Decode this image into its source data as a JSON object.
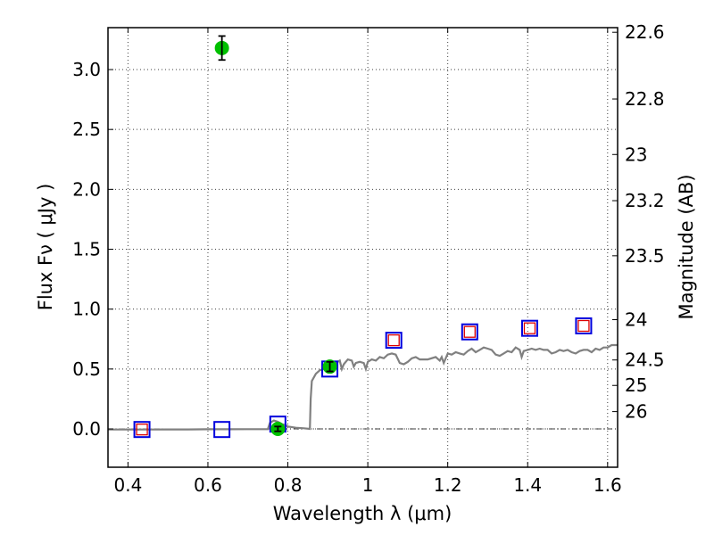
{
  "chart_data": {
    "type": "scatter",
    "xlabel": "Wavelength  λ (μm)",
    "ylabel": "Flux  Fν ( μJy )",
    "y2label": "Magnitude (AB)",
    "xlim": [
      0.35,
      1.625
    ],
    "ylim": [
      -0.32,
      3.35
    ],
    "x_ticks": [
      0.4,
      0.6,
      0.8,
      1.0,
      1.2,
      1.4,
      1.6
    ],
    "x_tick_labels": [
      "0.4",
      "0.6",
      "0.8",
      "1",
      "1.2",
      "1.4",
      "1.6"
    ],
    "y_ticks": [
      0.0,
      0.5,
      1.0,
      1.5,
      2.0,
      2.5,
      3.0
    ],
    "y_tick_labels": [
      "0.0",
      "0.5",
      "1.0",
      "1.5",
      "2.0",
      "2.5",
      "3.0"
    ],
    "y2_ticks": [
      22.6,
      22.8,
      23,
      23.2,
      23.5,
      24,
      24.5,
      25,
      26
    ],
    "y2_tick_labels": [
      "22.6",
      "22.8",
      "23",
      "23.2",
      "23.5",
      "24",
      "24.5",
      "25",
      "26"
    ],
    "grid": true,
    "zero_line": true,
    "colors": {
      "observed": "#00c000",
      "model_box": "#0000dd",
      "upper_box": "#dd0000",
      "spectrum": "#808080"
    },
    "series": [
      {
        "kind": "model_spectrum",
        "x": [
          0.35,
          0.4,
          0.45,
          0.5,
          0.55,
          0.6,
          0.65,
          0.7,
          0.75,
          0.755,
          0.765,
          0.775,
          0.785,
          0.795,
          0.8,
          0.82,
          0.84,
          0.855,
          0.857,
          0.86,
          0.87,
          0.88,
          0.89,
          0.9,
          0.91,
          0.92,
          0.93,
          0.935,
          0.94,
          0.95,
          0.96,
          0.965,
          0.97,
          0.98,
          0.99,
          0.995,
          1.0,
          1.01,
          1.02,
          1.03,
          1.04,
          1.05,
          1.06,
          1.07,
          1.08,
          1.09,
          1.1,
          1.11,
          1.12,
          1.13,
          1.15,
          1.17,
          1.18,
          1.185,
          1.19,
          1.2,
          1.21,
          1.22,
          1.23,
          1.24,
          1.25,
          1.26,
          1.27,
          1.28,
          1.29,
          1.3,
          1.31,
          1.32,
          1.33,
          1.34,
          1.35,
          1.36,
          1.37,
          1.38,
          1.385,
          1.39,
          1.4,
          1.41,
          1.42,
          1.43,
          1.44,
          1.45,
          1.46,
          1.47,
          1.48,
          1.49,
          1.5,
          1.51,
          1.52,
          1.53,
          1.54,
          1.55,
          1.56,
          1.57,
          1.58,
          1.59,
          1.6,
          1.61,
          1.625
        ],
        "y": [
          -0.005,
          -0.005,
          -0.005,
          -0.004,
          -0.004,
          -0.003,
          -0.003,
          -0.002,
          -0.002,
          0.05,
          0.07,
          0.06,
          0.04,
          0.03,
          0.02,
          0.01,
          0.005,
          0.0,
          0.25,
          0.4,
          0.46,
          0.49,
          0.5,
          0.51,
          0.53,
          0.55,
          0.57,
          0.5,
          0.54,
          0.58,
          0.57,
          0.52,
          0.55,
          0.56,
          0.55,
          0.5,
          0.56,
          0.58,
          0.57,
          0.6,
          0.59,
          0.62,
          0.63,
          0.62,
          0.55,
          0.54,
          0.56,
          0.59,
          0.6,
          0.58,
          0.58,
          0.6,
          0.57,
          0.6,
          0.55,
          0.63,
          0.62,
          0.64,
          0.63,
          0.62,
          0.65,
          0.67,
          0.64,
          0.66,
          0.68,
          0.67,
          0.66,
          0.62,
          0.61,
          0.63,
          0.65,
          0.64,
          0.68,
          0.66,
          0.6,
          0.65,
          0.66,
          0.67,
          0.66,
          0.67,
          0.66,
          0.66,
          0.63,
          0.64,
          0.66,
          0.65,
          0.66,
          0.64,
          0.63,
          0.65,
          0.66,
          0.66,
          0.64,
          0.67,
          0.66,
          0.68,
          0.68,
          0.7,
          0.7
        ]
      },
      {
        "kind": "model_band_flux",
        "x": [
          0.435,
          0.635,
          0.775,
          0.905,
          1.065,
          1.255,
          1.405,
          1.54
        ],
        "y": [
          -0.005,
          -0.005,
          0.04,
          0.5,
          0.74,
          0.81,
          0.84,
          0.86
        ]
      },
      {
        "kind": "upper_limit",
        "x": [
          0.435,
          1.065,
          1.255,
          1.405,
          1.54
        ],
        "y": [
          -0.005,
          0.74,
          0.81,
          0.84,
          0.86
        ]
      },
      {
        "kind": "observed",
        "x": [
          0.635,
          0.775,
          0.905
        ],
        "y": [
          3.18,
          0.0,
          0.52
        ],
        "yerr": [
          0.1,
          0.02,
          0.04
        ]
      }
    ]
  }
}
